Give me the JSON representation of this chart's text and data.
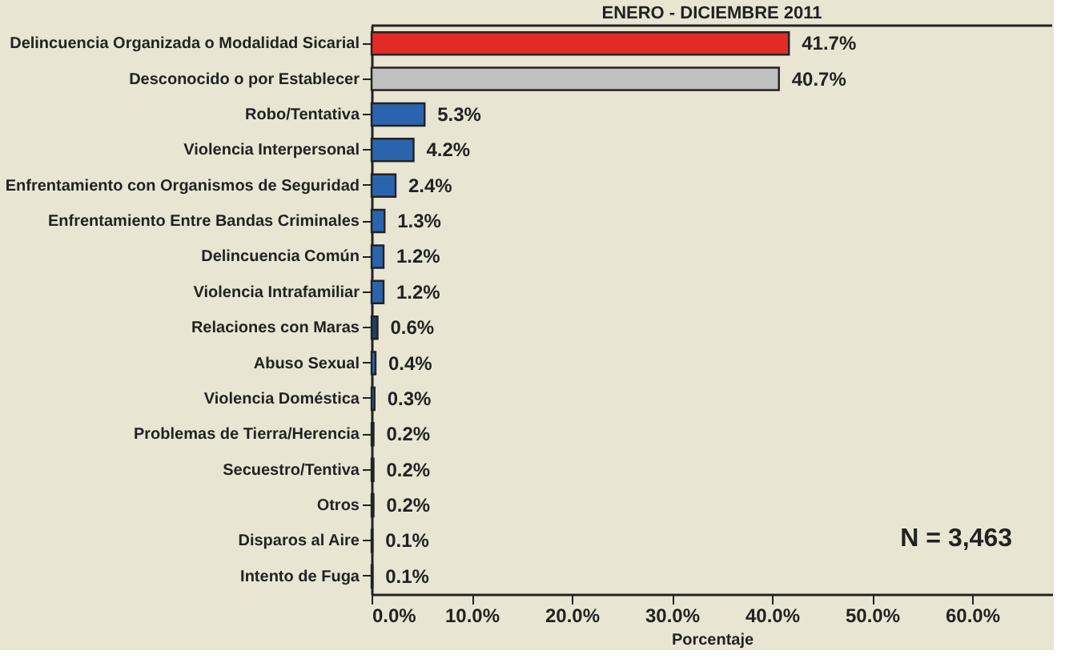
{
  "chart_data": {
    "type": "bar",
    "orientation": "horizontal",
    "title": "ENERO - DICIEMBRE 2011",
    "xlabel": "Porcentaje",
    "categories": [
      "Delincuencia Organizada o Modalidad Sicarial",
      "Desconocido o por Establecer",
      "Robo/Tentativa",
      "Violencia Interpersonal",
      "Enfrentamiento con Organismos de Seguridad",
      "Enfrentamiento Entre Bandas Criminales",
      "Delincuencia Común",
      "Violencia Intrafamiliar",
      "Relaciones con Maras",
      "Abuso Sexual",
      "Violencia Doméstica",
      "Problemas de Tierra/Herencia",
      "Secuestro/Tentiva",
      "Otros",
      "Disparos al Aire",
      "Intento de Fuga"
    ],
    "values": [
      41.7,
      40.7,
      5.3,
      4.2,
      2.4,
      1.3,
      1.2,
      1.2,
      0.6,
      0.4,
      0.3,
      0.2,
      0.2,
      0.2,
      0.1,
      0.1
    ],
    "value_labels": [
      "41.7%",
      "40.7%",
      "5.3%",
      "4.2%",
      "2.4%",
      "1.3%",
      "1.2%",
      "1.2%",
      "0.6%",
      "0.4%",
      "0.3%",
      "0.2%",
      "0.2%",
      "0.2%",
      "0.1%",
      "0.1%"
    ],
    "colors": [
      "#e22b24",
      "#c0c0c0",
      "#2a64ae",
      "#2a64ae",
      "#2a64ae",
      "#2a64ae",
      "#2a64ae",
      "#2a64ae",
      "#1f3f6e",
      "#2a64ae",
      "#2a64ae",
      "#2a64ae",
      "#2a64ae",
      "#2a64ae",
      "#2a64ae",
      "#2a64ae"
    ],
    "xlim": [
      0,
      68
    ],
    "xticks": [
      {
        "value": 0,
        "label": "0.0%"
      },
      {
        "value": 10,
        "label": "10.0%"
      },
      {
        "value": 20,
        "label": "20.0%"
      },
      {
        "value": 30,
        "label": "30.0%"
      },
      {
        "value": 40,
        "label": "40.0%"
      },
      {
        "value": 50,
        "label": "50.0%"
      },
      {
        "value": 60,
        "label": "60.0%"
      }
    ],
    "annotations": [
      "N = 3,463"
    ],
    "grid": false
  }
}
